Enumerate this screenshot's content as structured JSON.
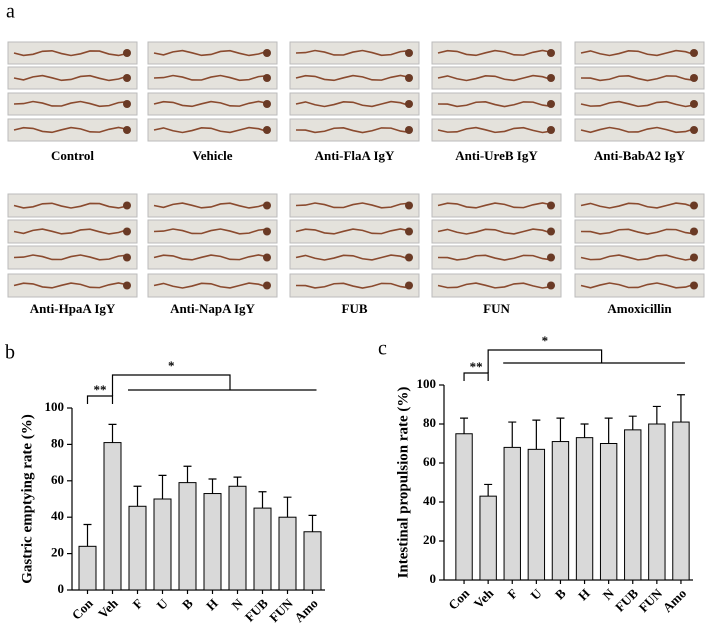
{
  "panel_label": "a",
  "photos": {
    "row1": [
      "Control",
      "Vehicle",
      "Anti-FlaA IgY",
      "Anti-UreB IgY",
      "Anti-BabA2 IgY"
    ],
    "row2": [
      "Anti-HpaA IgY",
      "Anti-NapA IgY",
      "FUB",
      "FUN",
      "Amoxicillin"
    ]
  },
  "chart_data": [
    {
      "type": "bar",
      "panel": "b",
      "ylabel": "Gastric emptying rate (%)",
      "categories": [
        "Con",
        "Veh",
        "F",
        "U",
        "B",
        "H",
        "N",
        "FUB",
        "FUN",
        "Amo"
      ],
      "values": [
        24,
        81,
        46,
        50,
        59,
        53,
        57,
        45,
        40,
        32
      ],
      "errors": [
        12,
        10,
        11,
        13,
        9,
        8,
        5,
        9,
        11,
        9
      ],
      "color": "#d9d9d9",
      "ylim": [
        0,
        100
      ],
      "yticks": [
        0,
        20,
        40,
        60,
        80,
        100
      ],
      "annotations": [
        "**",
        "*"
      ]
    },
    {
      "type": "bar",
      "panel": "c",
      "ylabel": "Intestinal propulsion rate (%)",
      "categories": [
        "Con",
        "Veh",
        "F",
        "U",
        "B",
        "H",
        "N",
        "FUB",
        "FUN",
        "Amo"
      ],
      "values": [
        75,
        43,
        68,
        67,
        71,
        73,
        70,
        77,
        80,
        81
      ],
      "errors": [
        8,
        6,
        13,
        15,
        12,
        7,
        13,
        7,
        9,
        14
      ],
      "color": "#d9d9d9",
      "ylim": [
        0,
        100
      ],
      "yticks": [
        0,
        20,
        40,
        60,
        80,
        100
      ],
      "annotations": [
        "**",
        "*"
      ]
    }
  ]
}
